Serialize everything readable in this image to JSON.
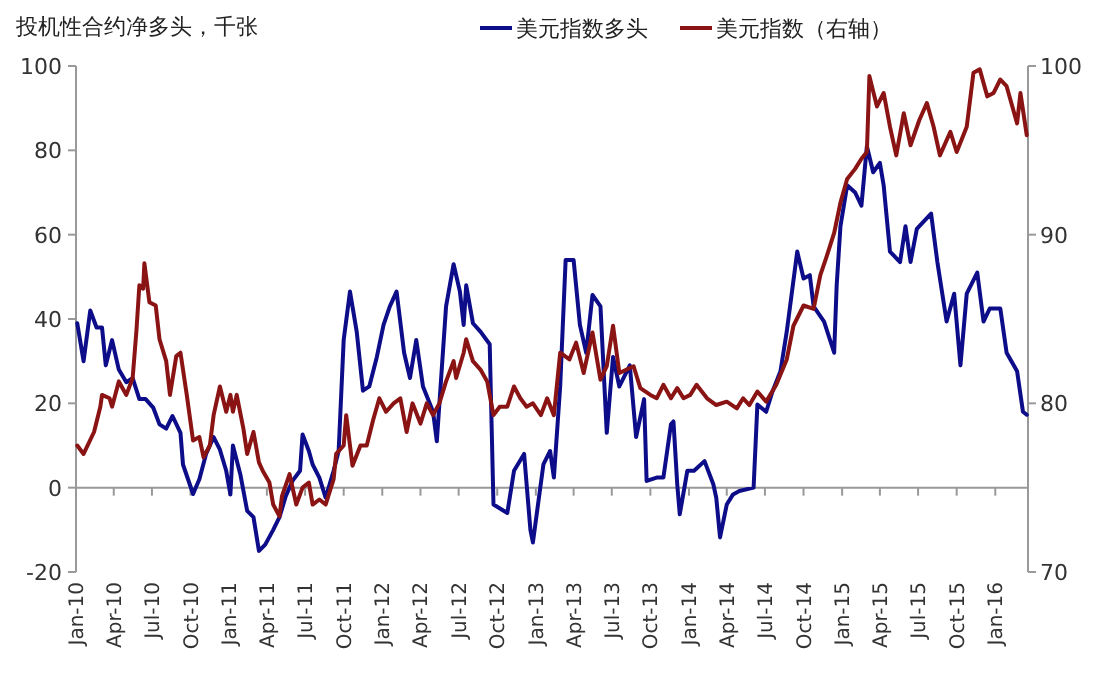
{
  "chart_data": {
    "type": "line",
    "title": "投机性合约净多头，千张",
    "legend": "top right",
    "xlim": [
      "2010-01-01",
      "2016-03-19"
    ],
    "xticks": [
      {
        "value": "2010-01",
        "label": "Jan-10"
      },
      {
        "value": "2010-04",
        "label": "Apr-10"
      },
      {
        "value": "2010-07",
        "label": "Jul-10"
      },
      {
        "value": "2010-10",
        "label": "Oct-10"
      },
      {
        "value": "2011-01",
        "label": "Jan-11"
      },
      {
        "value": "2011-04",
        "label": "Apr-11"
      },
      {
        "value": "2011-07",
        "label": "Jul-11"
      },
      {
        "value": "2011-10",
        "label": "Oct-11"
      },
      {
        "value": "2012-01",
        "label": "Jan-12"
      },
      {
        "value": "2012-04",
        "label": "Apr-12"
      },
      {
        "value": "2012-07",
        "label": "Jul-12"
      },
      {
        "value": "2012-10",
        "label": "Oct-12"
      },
      {
        "value": "2013-01",
        "label": "Jan-13"
      },
      {
        "value": "2013-04",
        "label": "Apr-13"
      },
      {
        "value": "2013-07",
        "label": "Jul-13"
      },
      {
        "value": "2013-10",
        "label": "Oct-13"
      },
      {
        "value": "2014-01",
        "label": "Jan-14"
      },
      {
        "value": "2014-04",
        "label": "Apr-14"
      },
      {
        "value": "2014-07",
        "label": "Jul-14"
      },
      {
        "value": "2014-10",
        "label": "Oct-14"
      },
      {
        "value": "2015-01",
        "label": "Jan-15"
      },
      {
        "value": "2015-04",
        "label": "Apr-15"
      },
      {
        "value": "2015-07",
        "label": "Jul-15"
      },
      {
        "value": "2015-10",
        "label": "Oct-15"
      },
      {
        "value": "2016-01",
        "label": "Jan-16"
      }
    ],
    "ylim": [
      -20,
      100
    ],
    "yticks": [
      -20,
      0,
      20,
      40,
      60,
      80,
      100
    ],
    "y2lim": [
      70,
      100
    ],
    "y2ticks": [
      70,
      80,
      90,
      100
    ],
    "series": [
      {
        "name": "美元指数多头",
        "color": "#0d0d8a",
        "x": [
          "2010-01-04",
          "2010-01-19",
          "2010-02-04",
          "2010-02-19",
          "2010-03-04",
          "2010-03-13",
          "2010-03-28",
          "2010-04-13",
          "2010-05-01",
          "2010-05-16",
          "2010-06-01",
          "2010-06-16",
          "2010-07-04",
          "2010-07-19",
          "2010-08-04",
          "2010-08-19",
          "2010-09-07",
          "2010-09-13",
          "2010-10-07",
          "2010-10-22",
          "2010-11-07",
          "2010-11-25",
          "2010-12-10",
          "2010-12-25",
          "2011-01-04",
          "2011-01-10",
          "2011-01-28",
          "2011-02-13",
          "2011-02-28",
          "2011-03-13",
          "2011-03-28",
          "2011-04-16",
          "2011-05-01",
          "2011-05-16",
          "2011-06-01",
          "2011-06-19",
          "2011-06-25",
          "2011-07-10",
          "2011-07-19",
          "2011-08-04",
          "2011-08-19",
          "2011-09-07",
          "2011-09-19",
          "2011-10-01",
          "2011-10-16",
          "2011-11-01",
          "2011-11-16",
          "2011-12-01",
          "2011-12-19",
          "2012-01-04",
          "2012-01-19",
          "2012-02-04",
          "2012-02-22",
          "2012-03-07",
          "2012-03-22",
          "2012-04-07",
          "2012-05-01",
          "2012-05-10",
          "2012-06-01",
          "2012-06-19",
          "2012-07-04",
          "2012-07-13",
          "2012-07-19",
          "2012-08-04",
          "2012-08-22",
          "2012-09-13",
          "2012-09-22",
          "2012-10-25",
          "2012-11-10",
          "2012-12-04",
          "2012-12-19",
          "2012-12-25",
          "2013-01-19",
          "2013-02-04",
          "2013-02-13",
          "2013-02-28",
          "2013-03-13",
          "2013-04-01",
          "2013-04-16",
          "2013-05-01",
          "2013-05-16",
          "2013-06-04",
          "2013-06-19",
          "2013-07-04",
          "2013-07-19",
          "2013-08-13",
          "2013-08-28",
          "2013-09-16",
          "2013-09-22",
          "2013-10-16",
          "2013-11-01",
          "2013-11-19",
          "2013-11-25",
          "2013-12-04",
          "2013-12-10",
          "2013-12-28",
          "2014-01-13",
          "2014-02-07",
          "2014-02-28",
          "2014-03-07",
          "2014-03-16",
          "2014-04-01",
          "2014-04-16",
          "2014-05-01",
          "2014-06-04",
          "2014-06-13",
          "2014-07-04",
          "2014-07-19",
          "2014-08-07",
          "2014-08-22",
          "2014-09-16",
          "2014-10-01",
          "2014-10-16",
          "2014-10-25",
          "2014-11-19",
          "2014-12-13",
          "2014-12-19",
          "2014-12-28",
          "2015-01-13",
          "2015-02-01",
          "2015-02-16",
          "2015-03-01",
          "2015-03-16",
          "2015-04-01",
          "2015-04-10",
          "2015-04-25",
          "2015-05-19",
          "2015-06-01",
          "2015-06-13",
          "2015-06-28",
          "2015-08-01",
          "2015-08-16",
          "2015-09-07",
          "2015-09-25",
          "2015-10-10",
          "2015-10-25",
          "2015-11-19",
          "2015-12-04",
          "2015-12-19",
          "2016-01-13",
          "2016-01-28",
          "2016-02-22",
          "2016-03-07",
          "2016-03-16"
        ],
        "values": [
          39,
          30,
          42,
          38,
          38,
          29,
          35,
          28,
          25,
          26,
          21,
          21,
          19,
          15,
          14,
          17,
          13,
          5.5,
          -1.5,
          2,
          8,
          12,
          9,
          4,
          -1.6,
          10,
          3,
          -5.5,
          -7,
          -15,
          -13.5,
          -10,
          -7,
          -2,
          1.6,
          4,
          12.6,
          8.7,
          5.5,
          2.4,
          -2.4,
          4,
          8.7,
          35,
          46.5,
          37,
          23,
          24,
          31,
          38.6,
          43,
          46.5,
          32,
          26,
          35,
          24,
          18,
          11,
          43,
          53,
          46.5,
          38.6,
          48,
          39,
          37,
          34,
          -4,
          -6,
          4,
          8,
          -10,
          -13,
          5.5,
          8.7,
          2.4,
          24,
          54,
          54,
          38.6,
          32,
          45.7,
          43,
          13,
          31,
          24,
          29,
          12,
          21,
          1.6,
          2.4,
          2.4,
          15,
          15.7,
          0.8,
          -6.3,
          4,
          4,
          6.3,
          0.8,
          -2.4,
          -11.8,
          -4,
          -1.6,
          -0.8,
          0,
          19.7,
          18,
          22.8,
          27.6,
          37,
          56,
          49.6,
          50.4,
          43,
          39.4,
          32,
          48,
          62,
          71.7,
          70,
          66.9,
          81,
          74.8,
          77,
          71.7,
          56,
          53.5,
          62,
          53.5,
          61.4,
          65,
          53.5,
          39.4,
          46,
          29,
          46,
          51,
          39.4,
          42.5,
          42.5,
          32,
          27.6,
          18,
          17.3
        ]
      },
      {
        "name": "美元指数（右轴）",
        "color": "#8a1414",
        "axis": "y2",
        "x": [
          "2010-01-04",
          "2010-01-19",
          "2010-02-13",
          "2010-02-28",
          "2010-03-04",
          "2010-03-22",
          "2010-03-28",
          "2010-04-13",
          "2010-05-01",
          "2010-05-16",
          "2010-05-25",
          "2010-06-01",
          "2010-06-10",
          "2010-06-13",
          "2010-06-25",
          "2010-07-10",
          "2010-07-19",
          "2010-08-04",
          "2010-08-13",
          "2010-08-28",
          "2010-09-07",
          "2010-09-22",
          "2010-10-07",
          "2010-10-22",
          "2010-11-01",
          "2010-11-16",
          "2010-11-25",
          "2010-12-10",
          "2010-12-25",
          "2011-01-04",
          "2011-01-10",
          "2011-01-19",
          "2011-02-04",
          "2011-02-13",
          "2011-02-28",
          "2011-03-13",
          "2011-03-22",
          "2011-04-07",
          "2011-04-16",
          "2011-05-01",
          "2011-05-07",
          "2011-05-25",
          "2011-06-10",
          "2011-06-25",
          "2011-07-10",
          "2011-07-19",
          "2011-08-04",
          "2011-08-19",
          "2011-09-07",
          "2011-09-13",
          "2011-10-01",
          "2011-10-07",
          "2011-10-22",
          "2011-11-10",
          "2011-11-25",
          "2011-12-10",
          "2011-12-25",
          "2012-01-10",
          "2012-01-28",
          "2012-02-13",
          "2012-02-28",
          "2012-03-13",
          "2012-04-01",
          "2012-04-16",
          "2012-05-01",
          "2012-05-16",
          "2012-06-01",
          "2012-06-19",
          "2012-06-25",
          "2012-07-13",
          "2012-07-19",
          "2012-08-04",
          "2012-08-22",
          "2012-09-07",
          "2012-09-22",
          "2012-10-07",
          "2012-10-25",
          "2012-11-10",
          "2012-11-25",
          "2012-12-10",
          "2012-12-25",
          "2013-01-13",
          "2013-01-28",
          "2013-02-13",
          "2013-02-28",
          "2013-03-22",
          "2013-04-07",
          "2013-04-25",
          "2013-05-16",
          "2013-06-04",
          "2013-06-19",
          "2013-07-04",
          "2013-07-19",
          "2013-08-22",
          "2013-09-07",
          "2013-10-01",
          "2013-10-16",
          "2013-11-01",
          "2013-11-19",
          "2013-12-04",
          "2013-12-19",
          "2014-01-04",
          "2014-01-19",
          "2014-02-13",
          "2014-03-07",
          "2014-04-01",
          "2014-04-25",
          "2014-05-10",
          "2014-05-25",
          "2014-06-13",
          "2014-07-04",
          "2014-07-28",
          "2014-08-22",
          "2014-09-07",
          "2014-10-01",
          "2014-10-25",
          "2014-11-10",
          "2014-11-25",
          "2014-12-13",
          "2014-12-28",
          "2015-01-13",
          "2015-02-01",
          "2015-02-16",
          "2015-03-01",
          "2015-03-07",
          "2015-03-25",
          "2015-04-10",
          "2015-04-25",
          "2015-05-10",
          "2015-05-28",
          "2015-06-13",
          "2015-07-04",
          "2015-07-22",
          "2015-08-07",
          "2015-08-22",
          "2015-09-16",
          "2015-10-01",
          "2015-10-25",
          "2015-11-10",
          "2015-11-25",
          "2015-12-13",
          "2015-12-28",
          "2016-01-13",
          "2016-01-28",
          "2016-02-22",
          "2016-03-01",
          "2016-03-16"
        ],
        "values": [
          77.5,
          77.0,
          78.3,
          79.8,
          80.5,
          80.3,
          79.8,
          81.3,
          80.5,
          81.5,
          84.3,
          87.0,
          86.8,
          88.3,
          86.0,
          85.8,
          83.8,
          82.5,
          80.5,
          82.8,
          83.0,
          80.5,
          77.8,
          78.0,
          76.8,
          77.5,
          79.3,
          81.0,
          79.5,
          80.5,
          79.5,
          80.5,
          78.5,
          77.0,
          78.3,
          76.5,
          76.0,
          75.3,
          74.0,
          73.3,
          74.5,
          75.8,
          74.0,
          75.0,
          75.3,
          74.0,
          74.3,
          74.0,
          75.5,
          77.0,
          77.5,
          79.3,
          76.3,
          77.5,
          77.5,
          79.0,
          80.3,
          79.5,
          80.0,
          80.3,
          78.3,
          80.0,
          78.8,
          80.0,
          79.3,
          80.0,
          81.3,
          82.5,
          81.5,
          83.0,
          83.8,
          82.5,
          82.0,
          81.3,
          79.3,
          79.8,
          79.8,
          81.0,
          80.3,
          79.8,
          80.0,
          79.3,
          80.3,
          79.3,
          83.0,
          82.6,
          83.6,
          81.8,
          84.2,
          81.4,
          82.2,
          84.6,
          81.8,
          82.2,
          80.9,
          80.5,
          80.3,
          81.1,
          80.3,
          80.9,
          80.3,
          80.5,
          81.1,
          80.3,
          79.9,
          80.1,
          79.7,
          80.3,
          79.9,
          80.7,
          80.1,
          81.1,
          82.6,
          84.6,
          85.8,
          85.6,
          87.6,
          88.7,
          90.1,
          91.9,
          93.3,
          93.9,
          94.5,
          94.9,
          99.4,
          97.6,
          98.4,
          96.4,
          94.7,
          97.2,
          95.3,
          96.8,
          97.8,
          96.4,
          94.7,
          96.1,
          94.9,
          96.4,
          99.6,
          99.8,
          98.2,
          98.4,
          99.2,
          98.8,
          96.6,
          98.4,
          95.9
        ]
      }
    ]
  }
}
